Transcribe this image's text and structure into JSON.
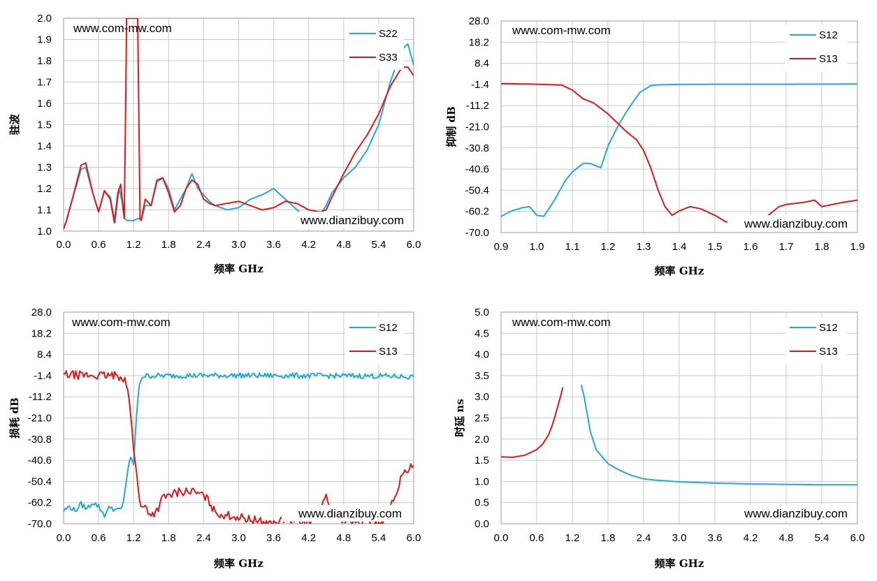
{
  "colors": {
    "blue": "#1fa9e0",
    "red": "#e31515"
  },
  "chart_data": [
    {
      "id": "vswr",
      "type": "line",
      "xlabel": "频率 GHz",
      "ylabel": "驻波",
      "xlim": [
        0,
        6.0
      ],
      "ylim": [
        1.0,
        2.0
      ],
      "xticks": [
        "0.0",
        "0.6",
        "1.2",
        "1.8",
        "2.4",
        "3.0",
        "3.6",
        "4.2",
        "4.8",
        "5.4",
        "6.0"
      ],
      "yticks": [
        "1.0",
        "1.1",
        "1.2",
        "1.3",
        "1.4",
        "1.5",
        "1.6",
        "1.7",
        "1.8",
        "1.9",
        "2.0"
      ],
      "watermarks": [
        "www.com-mw.com",
        "www.dianzibuy.com"
      ],
      "grid": true,
      "legend": "top-right",
      "series": [
        {
          "name": "S22",
          "color": "blue",
          "noise": 0.012,
          "x": [
            0,
            0.05,
            0.15,
            0.3,
            0.38,
            0.5,
            0.6,
            0.7,
            0.8,
            0.88,
            0.95,
            1.02,
            1.05,
            1.08,
            1.2,
            1.28,
            1.33,
            1.4,
            1.5,
            1.6,
            1.7,
            1.8,
            1.9,
            2.0,
            2.1,
            2.2,
            2.3,
            2.4,
            2.5,
            2.6,
            2.8,
            3.0,
            3.2,
            3.4,
            3.6,
            3.8,
            4.0,
            4.2,
            4.3,
            4.4,
            4.5,
            4.6,
            4.8,
            5.0,
            5.2,
            5.4,
            5.5,
            5.6,
            5.7,
            5.8,
            5.9,
            6.0
          ],
          "y": [
            1.01,
            1.05,
            1.15,
            1.29,
            1.3,
            1.18,
            1.09,
            1.19,
            1.16,
            1.04,
            1.2,
            1.12,
            1.06,
            1.05,
            1.05,
            1.06,
            1.05,
            1.12,
            1.12,
            1.23,
            1.25,
            1.2,
            1.1,
            1.15,
            1.2,
            1.27,
            1.2,
            1.17,
            1.14,
            1.12,
            1.1,
            1.11,
            1.15,
            1.17,
            1.2,
            1.15,
            1.1,
            1.05,
            1.04,
            1.08,
            1.12,
            1.18,
            1.25,
            1.3,
            1.38,
            1.5,
            1.6,
            1.7,
            1.78,
            1.85,
            1.88,
            1.78
          ]
        },
        {
          "name": "S33",
          "color": "red",
          "noise": 0.004,
          "x": [
            0,
            0.05,
            0.15,
            0.3,
            0.38,
            0.5,
            0.6,
            0.7,
            0.8,
            0.87,
            0.93,
            0.98,
            1.02,
            1.04,
            1.06,
            1.08,
            1.1,
            1.13,
            1.24,
            1.27,
            1.29,
            1.31,
            1.33,
            1.37,
            1.4,
            1.5,
            1.6,
            1.7,
            1.8,
            1.9,
            2.0,
            2.1,
            2.2,
            2.3,
            2.4,
            2.5,
            2.6,
            2.8,
            3.0,
            3.2,
            3.4,
            3.6,
            3.8,
            4.0,
            4.2,
            4.4,
            4.5,
            4.6,
            4.8,
            5.0,
            5.2,
            5.4,
            5.6,
            5.8,
            5.9,
            6.0
          ],
          "y": [
            1.01,
            1.05,
            1.15,
            1.31,
            1.32,
            1.18,
            1.09,
            1.19,
            1.15,
            1.04,
            1.18,
            1.22,
            1.1,
            1.06,
            1.5,
            2.0,
            2.0,
            2.0,
            2.0,
            2.0,
            1.55,
            1.06,
            1.05,
            1.11,
            1.15,
            1.12,
            1.24,
            1.25,
            1.18,
            1.09,
            1.12,
            1.2,
            1.24,
            1.22,
            1.15,
            1.13,
            1.12,
            1.13,
            1.14,
            1.12,
            1.1,
            1.11,
            1.14,
            1.13,
            1.1,
            1.09,
            1.1,
            1.16,
            1.27,
            1.37,
            1.45,
            1.55,
            1.68,
            1.77,
            1.77,
            1.73
          ]
        }
      ]
    },
    {
      "id": "suppression",
      "type": "line",
      "xlabel": "频率 GHz",
      "ylabel": "抑制 dB",
      "xlim": [
        0.9,
        1.9
      ],
      "ylim": [
        -70.0,
        28.0
      ],
      "xticks": [
        "0.9",
        "1.0",
        "1.1",
        "1.2",
        "1.3",
        "1.4",
        "1.5",
        "1.6",
        "1.7",
        "1.8",
        "1.9"
      ],
      "yticks": [
        "-70.0",
        "-60.2",
        "-50.4",
        "-40.6",
        "-30.8",
        "-21.0",
        "-11.2",
        "-1.4",
        "8.4",
        "18.2",
        "28.0"
      ],
      "watermarks": [
        "www.com-mw.com",
        "www.dianzibuy.com"
      ],
      "grid": true,
      "legend": "top-right",
      "series": [
        {
          "name": "S12",
          "color": "blue",
          "noise": 0,
          "x": [
            0.9,
            0.93,
            0.96,
            0.98,
            1.0,
            1.02,
            1.05,
            1.08,
            1.1,
            1.13,
            1.15,
            1.18,
            1.2,
            1.23,
            1.26,
            1.29,
            1.32,
            1.34,
            1.4,
            1.5,
            1.7,
            1.9
          ],
          "y": [
            -62.5,
            -60,
            -58.5,
            -58,
            -62,
            -62.5,
            -55,
            -46,
            -42,
            -38,
            -38,
            -40,
            -30,
            -20,
            -12,
            -5,
            -2,
            -1.6,
            -1.4,
            -1.3,
            -1.3,
            -1.2
          ]
        },
        {
          "name": "S13",
          "color": "red",
          "noise": 0,
          "x": [
            0.9,
            1.0,
            1.07,
            1.1,
            1.13,
            1.16,
            1.2,
            1.25,
            1.28,
            1.3,
            1.32,
            1.34,
            1.36,
            1.38,
            1.4,
            1.43,
            1.46,
            1.5,
            1.53,
            1.56,
            1.58,
            1.6,
            1.63,
            1.65,
            1.68,
            1.7,
            1.75,
            1.78,
            1.8,
            1.83,
            1.86,
            1.9
          ],
          "y": [
            -1.0,
            -1.3,
            -1.7,
            -4,
            -8,
            -10,
            -15,
            -23,
            -27,
            -32,
            -40,
            -50,
            -58,
            -62,
            -60,
            -58,
            -59,
            -62,
            -65,
            -66,
            -67,
            -63,
            -64,
            -62,
            -58,
            -57,
            -56,
            -55,
            -58,
            -57,
            -56,
            -55
          ]
        }
      ]
    },
    {
      "id": "loss",
      "type": "line",
      "xlabel": "频率 GHz",
      "ylabel": "损耗 dB",
      "xlim": [
        0,
        6.0
      ],
      "ylim": [
        -70.0,
        28.0
      ],
      "xticks": [
        "0.0",
        "0.6",
        "1.2",
        "1.8",
        "2.4",
        "3.0",
        "3.6",
        "4.2",
        "4.8",
        "5.4",
        "6.0"
      ],
      "yticks": [
        "-70.0",
        "-60.2",
        "-50.4",
        "-40.6",
        "-30.8",
        "-21.0",
        "-11.2",
        "-1.4",
        "8.4",
        "18.2",
        "28.0"
      ],
      "watermarks": [
        "www.com-mw.com",
        "www.dianzibuy.com"
      ],
      "grid": true,
      "legend": "top-right",
      "series": [
        {
          "name": "S12",
          "color": "blue",
          "noise": 0.25,
          "x": [
            0,
            0.1,
            0.2,
            0.3,
            0.4,
            0.5,
            0.6,
            0.7,
            0.8,
            0.9,
            1.0,
            1.05,
            1.1,
            1.15,
            1.2,
            1.25,
            1.3,
            1.35,
            1.4,
            2.0,
            3.0,
            4.0,
            5.0,
            5.5,
            6.0
          ],
          "y": [
            -64,
            -62,
            -64,
            -61,
            -63,
            -60,
            -62,
            -66,
            -62,
            -64,
            -63,
            -55,
            -45,
            -40,
            -42,
            -20,
            -5,
            -1.8,
            -1.5,
            -1.4,
            -1.3,
            -1.4,
            -1.5,
            -1.6,
            -2.0
          ]
        },
        {
          "name": "S13",
          "color": "red",
          "noise": 0.4,
          "x": [
            0,
            0.3,
            0.6,
            0.9,
            1.0,
            1.05,
            1.1,
            1.15,
            1.2,
            1.25,
            1.3,
            1.35,
            1.4,
            1.5,
            1.6,
            1.7,
            1.8,
            1.9,
            2.0,
            2.2,
            2.4,
            2.5,
            2.6,
            2.8,
            3.0,
            3.2,
            3.4,
            3.6,
            3.8,
            4.0,
            4.2,
            4.3,
            4.4,
            4.5,
            4.6,
            4.8,
            5.0,
            5.2,
            5.4,
            5.5,
            5.6,
            5.7,
            5.8,
            6.0
          ],
          "y": [
            -1.0,
            -1.2,
            -1.4,
            -1.5,
            -1.8,
            -3,
            -8,
            -20,
            -35,
            -45,
            -60,
            -63,
            -62,
            -66,
            -64,
            -58,
            -57,
            -56,
            -55,
            -55,
            -57,
            -60,
            -65,
            -66,
            -67,
            -68,
            -69,
            -70,
            -68,
            -69,
            -70,
            -68,
            -64,
            -58,
            -66,
            -68,
            -70,
            -69,
            -70,
            -68,
            -63,
            -55,
            -48,
            -43
          ]
        }
      ]
    },
    {
      "id": "delay",
      "type": "line",
      "xlabel": "频率 GHz",
      "ylabel": "时延 ns",
      "xlim": [
        0,
        6.0
      ],
      "ylim": [
        0.0,
        5.0
      ],
      "xticks": [
        "0.0",
        "0.6",
        "1.2",
        "1.8",
        "2.4",
        "3.0",
        "3.6",
        "4.2",
        "4.8",
        "5.4",
        "6.0"
      ],
      "yticks": [
        "0.0",
        "0.5",
        "1.0",
        "1.5",
        "2.0",
        "2.5",
        "3.0",
        "3.5",
        "4.0",
        "4.5",
        "5.0"
      ],
      "watermarks": [
        "www.com-mw.com",
        "www.dianzibuy.com"
      ],
      "grid": true,
      "legend": "top-right",
      "series": [
        {
          "name": "S12",
          "color": "blue",
          "noise": 0.004,
          "x": [
            1.35,
            1.4,
            1.45,
            1.5,
            1.6,
            1.8,
            2.0,
            2.2,
            2.4,
            2.6,
            2.8,
            3.0,
            3.6,
            4.2,
            4.8,
            5.4,
            6.0
          ],
          "y": [
            3.28,
            3.0,
            2.6,
            2.2,
            1.75,
            1.42,
            1.26,
            1.14,
            1.06,
            1.03,
            1.01,
            0.99,
            0.96,
            0.94,
            0.93,
            0.92,
            0.92
          ]
        },
        {
          "name": "S13",
          "color": "red",
          "noise": 0,
          "x": [
            0,
            0.2,
            0.4,
            0.6,
            0.7,
            0.8,
            0.85,
            0.9,
            0.95,
            1.0,
            1.04
          ],
          "y": [
            1.58,
            1.57,
            1.62,
            1.75,
            1.88,
            2.1,
            2.28,
            2.5,
            2.75,
            3.0,
            3.22
          ]
        }
      ]
    }
  ]
}
